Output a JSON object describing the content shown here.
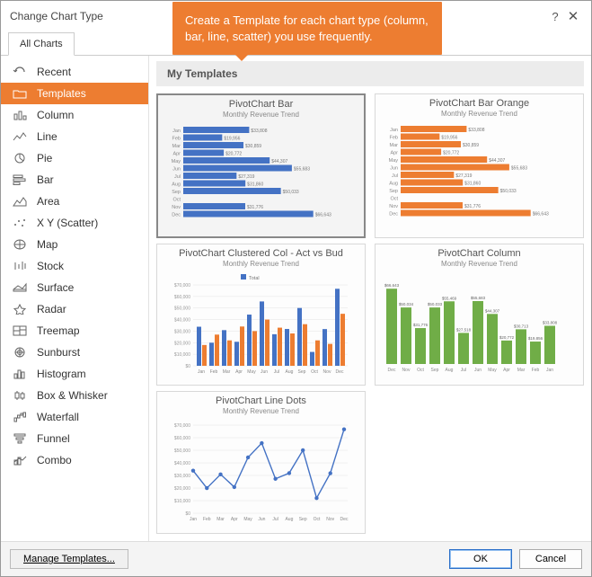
{
  "dialog": {
    "title": "Change Chart Type",
    "help": "?",
    "close": "✕"
  },
  "tooltip": "Create a Template for each chart type (column, bar, line, scatter) you use frequently.",
  "tab": "All Charts",
  "sidebar": {
    "items": [
      {
        "label": "Recent",
        "icon": "↩"
      },
      {
        "label": "Templates",
        "icon": "📁",
        "selected": true
      },
      {
        "label": "Column",
        "icon": "▮▮"
      },
      {
        "label": "Line",
        "icon": "折"
      },
      {
        "label": "Pie",
        "icon": "◔"
      },
      {
        "label": "Bar",
        "icon": "≡"
      },
      {
        "label": "Area",
        "icon": "◣"
      },
      {
        "label": "X Y (Scatter)",
        "icon": "⋯"
      },
      {
        "label": "Map",
        "icon": "🌐"
      },
      {
        "label": "Stock",
        "icon": "┇"
      },
      {
        "label": "Surface",
        "icon": "▦"
      },
      {
        "label": "Radar",
        "icon": "✦"
      },
      {
        "label": "Treemap",
        "icon": "▦"
      },
      {
        "label": "Sunburst",
        "icon": "◉"
      },
      {
        "label": "Histogram",
        "icon": "▮▮"
      },
      {
        "label": "Box & Whisker",
        "icon": "⊟"
      },
      {
        "label": "Waterfall",
        "icon": "▬"
      },
      {
        "label": "Funnel",
        "icon": "▽"
      },
      {
        "label": "Combo",
        "icon": "▮▮"
      }
    ]
  },
  "section_title": "My Templates",
  "months": [
    "Jan",
    "Feb",
    "Mar",
    "Apr",
    "May",
    "Jun",
    "Jul",
    "Aug",
    "Sep",
    "Oct",
    "Nov",
    "Dec"
  ],
  "months_rev": [
    "Dec",
    "Nov",
    "Oct",
    "Sep",
    "Aug",
    "Jul",
    "Jun",
    "May",
    "Apr",
    "Mar",
    "Feb",
    "Jan"
  ],
  "thumbs": [
    {
      "title": "PivotChart Bar",
      "subtitle": "Monthly Revenue Trend",
      "type": "hbar",
      "color": "#4472c4",
      "selected": true,
      "values": [
        33808,
        19956,
        30859,
        20772,
        44307,
        55683,
        27319,
        31860,
        50033,
        0,
        31776,
        66643
      ],
      "labels": [
        "$33,808",
        "$19,956",
        "$30,859",
        "$20,772",
        "$44,307",
        "$55,683",
        "$27,319",
        "$31,860",
        "$50,033",
        "",
        "$31,776",
        "$66,643"
      ],
      "max": 70000
    },
    {
      "title": "PivotChart Bar Orange",
      "subtitle": "Monthly Revenue Trend",
      "type": "hbar",
      "color": "#ed7d31",
      "values": [
        33808,
        19956,
        30859,
        20772,
        44307,
        55683,
        27319,
        31860,
        50033,
        0,
        31776,
        66643
      ],
      "labels": [
        "$33,808",
        "$19,956",
        "$30,859",
        "$20,772",
        "$44,307",
        "$55,683",
        "$27,319",
        "$31,860",
        "$50,033",
        "",
        "$31,776",
        "$66,643"
      ],
      "max": 70000
    },
    {
      "title": "PivotChart Clustered Col - Act vs Bud",
      "subtitle": "Monthly Revenue Trend",
      "type": "clustered",
      "colorA": "#4472c4",
      "colorB": "#ed7d31",
      "legend": "Total",
      "valuesA": [
        33808,
        19956,
        30859,
        20772,
        44307,
        55683,
        27319,
        31860,
        50033,
        12000,
        31776,
        66643
      ],
      "valuesB": [
        18000,
        27000,
        22000,
        34000,
        30000,
        40000,
        33000,
        28000,
        36000,
        22000,
        18954,
        45000
      ],
      "yticks": [
        "$0",
        "$10,000",
        "$20,000",
        "$30,000",
        "$40,000",
        "$50,000",
        "$60,000",
        "$70,000"
      ],
      "max": 70000
    },
    {
      "title": "PivotChart Column",
      "subtitle": "Monthly Revenue Trend",
      "type": "column_rev",
      "color": "#70ad47",
      "values": [
        66643,
        50034,
        31776,
        50033,
        55469,
        27518,
        55683,
        44307,
        20772,
        30713,
        19856,
        33808
      ],
      "labels": [
        "$66,643",
        "$50,034",
        "$31,776",
        "$50,033",
        "$55,469",
        "$27,518",
        "$55,683",
        "$44,307",
        "$20,772",
        "$30,713",
        "$19,856",
        "$33,808"
      ],
      "max": 70000
    },
    {
      "title": "PivotChart Line Dots",
      "subtitle": "Monthly Revenue Trend",
      "type": "line",
      "color": "#4472c4",
      "values": [
        33808,
        19956,
        30859,
        20772,
        44307,
        55683,
        27319,
        31860,
        50033,
        12000,
        31776,
        66643
      ],
      "yticks": [
        "$0",
        "$10,000",
        "$20,000",
        "$30,000",
        "$40,000",
        "$50,000",
        "$60,000",
        "$70,000"
      ],
      "max": 70000
    }
  ],
  "footer": {
    "manage": "Manage Templates...",
    "ok": "OK",
    "cancel": "Cancel"
  },
  "colors": {
    "accent_orange": "#ed7d31",
    "accent_blue": "#4472c4",
    "accent_green": "#70ad47",
    "grid": "#e4e4e4"
  }
}
